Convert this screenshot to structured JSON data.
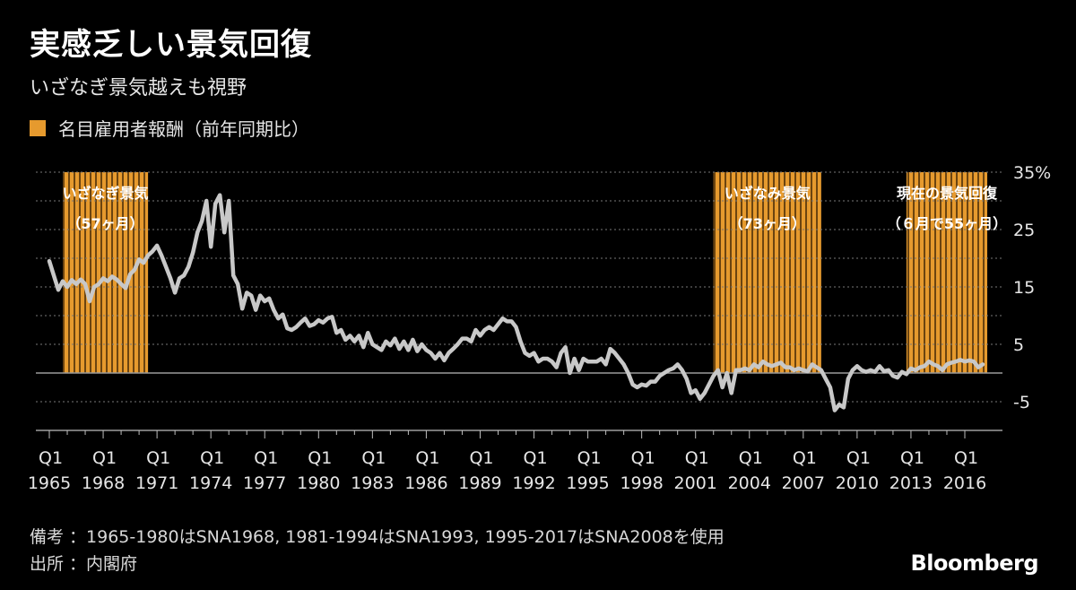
{
  "header": {
    "title": "実感乏しい景気回復",
    "subtitle": "いざなぎ景気越えも視野"
  },
  "legend": {
    "label": "名目雇用者報酬（前年同期比）",
    "color": "#e69a2e"
  },
  "footer": {
    "note": "備考 ：1965-1980はSNA1968, 1981-1994はSNA1993, 1995-2017はSNA2008を使用",
    "source": "出所 ：内閣府",
    "brand": "Bloomberg"
  },
  "colors": {
    "background": "#000000",
    "line": "#c8c8c8",
    "band": "#e69a2e",
    "grid": "#777777"
  },
  "chart_data": {
    "type": "line",
    "title": "",
    "xlabel": "",
    "ylabel": "",
    "x_range": [
      1965.0,
      2017.25
    ],
    "ylim": [
      -10,
      35
    ],
    "y_ticks": [
      35,
      25,
      15,
      5,
      -5
    ],
    "y_tick_labels": [
      "35%",
      "25",
      "15",
      "5",
      "-5"
    ],
    "x_ticks": [
      {
        "q": "Q1",
        "year": "1965",
        "x": 1965
      },
      {
        "q": "Q1",
        "year": "1968",
        "x": 1968
      },
      {
        "q": "Q1",
        "year": "1971",
        "x": 1971
      },
      {
        "q": "Q1",
        "year": "1974",
        "x": 1974
      },
      {
        "q": "Q1",
        "year": "1977",
        "x": 1977
      },
      {
        "q": "Q1",
        "year": "1980",
        "x": 1980
      },
      {
        "q": "Q1",
        "year": "1983",
        "x": 1983
      },
      {
        "q": "Q1",
        "year": "1986",
        "x": 1986
      },
      {
        "q": "Q1",
        "year": "1989",
        "x": 1989
      },
      {
        "q": "Q1",
        "year": "1992",
        "x": 1992
      },
      {
        "q": "Q1",
        "year": "1995",
        "x": 1995
      },
      {
        "q": "Q1",
        "year": "1998",
        "x": 1998
      },
      {
        "q": "Q1",
        "year": "2001",
        "x": 2001
      },
      {
        "q": "Q1",
        "year": "2004",
        "x": 2004
      },
      {
        "q": "Q1",
        "year": "2007",
        "x": 2007
      },
      {
        "q": "Q1",
        "year": "2010",
        "x": 2010
      },
      {
        "q": "Q1",
        "year": "2013",
        "x": 2013
      },
      {
        "q": "Q1",
        "year": "2016",
        "x": 2016
      }
    ],
    "periods": [
      {
        "line1": "いざなぎ景気",
        "line2": "（57ヶ月）",
        "start": 1965.75,
        "end": 1970.5
      },
      {
        "line1": "いざなみ景気",
        "line2": "（73ヶ月）",
        "start": 2002.0,
        "end": 2008.0
      },
      {
        "line1": "現在の景気回復",
        "line2": "（６月で55ヶ月）",
        "start": 2012.75,
        "end": 2017.25
      }
    ],
    "series": [
      {
        "points": [
          [
            1965.0,
            19.5
          ],
          [
            1965.25,
            17
          ],
          [
            1965.5,
            14.5
          ],
          [
            1965.75,
            16
          ],
          [
            1966.0,
            15
          ],
          [
            1966.25,
            16.2
          ],
          [
            1966.5,
            15.5
          ],
          [
            1966.75,
            16.3
          ],
          [
            1967.0,
            15.5
          ],
          [
            1967.25,
            12.5
          ],
          [
            1967.5,
            15
          ],
          [
            1967.75,
            15.5
          ],
          [
            1968.0,
            16.5
          ],
          [
            1968.25,
            16
          ],
          [
            1968.5,
            16.8
          ],
          [
            1968.75,
            16.3
          ],
          [
            1969.0,
            15.5
          ],
          [
            1969.25,
            14.8
          ],
          [
            1969.5,
            17.2
          ],
          [
            1969.75,
            18
          ],
          [
            1970.0,
            19.8
          ],
          [
            1970.25,
            19.2
          ],
          [
            1970.5,
            20.5
          ],
          [
            1970.75,
            21.2
          ],
          [
            1971.0,
            22.2
          ],
          [
            1971.25,
            20.5
          ],
          [
            1971.5,
            18.5
          ],
          [
            1971.75,
            16.5
          ],
          [
            1972.0,
            14
          ],
          [
            1972.25,
            16.5
          ],
          [
            1972.5,
            17
          ],
          [
            1972.75,
            18.5
          ],
          [
            1973.0,
            21
          ],
          [
            1973.25,
            24.5
          ],
          [
            1973.5,
            26.5
          ],
          [
            1973.75,
            30
          ],
          [
            1974.0,
            22
          ],
          [
            1974.25,
            29.5
          ],
          [
            1974.5,
            31
          ],
          [
            1974.75,
            24.5
          ],
          [
            1975.0,
            30
          ],
          [
            1975.25,
            17
          ],
          [
            1975.5,
            15.5
          ],
          [
            1975.75,
            11.2
          ],
          [
            1976.0,
            14
          ],
          [
            1976.25,
            13.5
          ],
          [
            1976.5,
            11
          ],
          [
            1976.75,
            13.5
          ],
          [
            1977.0,
            12.5
          ],
          [
            1977.25,
            13
          ],
          [
            1977.5,
            11
          ],
          [
            1977.75,
            9.5
          ],
          [
            1978.0,
            10.2
          ],
          [
            1978.25,
            7.8
          ],
          [
            1978.5,
            7.5
          ],
          [
            1978.75,
            8
          ],
          [
            1979.0,
            8.8
          ],
          [
            1979.25,
            9.5
          ],
          [
            1979.5,
            8.2
          ],
          [
            1979.75,
            8.5
          ],
          [
            1980.0,
            9.2
          ],
          [
            1980.25,
            8.8
          ],
          [
            1980.5,
            9.5
          ],
          [
            1980.75,
            9.8
          ],
          [
            1981.0,
            7
          ],
          [
            1981.25,
            7.5
          ],
          [
            1981.5,
            5.8
          ],
          [
            1981.75,
            6.5
          ],
          [
            1982.0,
            5.5
          ],
          [
            1982.25,
            6.5
          ],
          [
            1982.5,
            4.5
          ],
          [
            1982.75,
            7
          ],
          [
            1983.0,
            5
          ],
          [
            1983.25,
            4.5
          ],
          [
            1983.5,
            4
          ],
          [
            1983.75,
            5.5
          ],
          [
            1984.0,
            4.8
          ],
          [
            1984.25,
            6
          ],
          [
            1984.5,
            4.2
          ],
          [
            1984.75,
            5.5
          ],
          [
            1985.0,
            4
          ],
          [
            1985.25,
            5.8
          ],
          [
            1985.5,
            3.8
          ],
          [
            1985.75,
            5
          ],
          [
            1986.0,
            4
          ],
          [
            1986.25,
            3.5
          ],
          [
            1986.5,
            2.5
          ],
          [
            1986.75,
            3.5
          ],
          [
            1987.0,
            2.2
          ],
          [
            1987.25,
            3.5
          ],
          [
            1987.5,
            4.2
          ],
          [
            1987.75,
            5
          ],
          [
            1988.0,
            6
          ],
          [
            1988.25,
            6
          ],
          [
            1988.5,
            5.5
          ],
          [
            1988.75,
            7.5
          ],
          [
            1989.0,
            6.5
          ],
          [
            1989.25,
            7.5
          ],
          [
            1989.5,
            8
          ],
          [
            1989.75,
            7.5
          ],
          [
            1990.0,
            8.5
          ],
          [
            1990.25,
            9.5
          ],
          [
            1990.5,
            9
          ],
          [
            1990.75,
            9
          ],
          [
            1991.0,
            8
          ],
          [
            1991.25,
            5.5
          ],
          [
            1991.5,
            3.5
          ],
          [
            1991.75,
            3
          ],
          [
            1992.0,
            3.5
          ],
          [
            1992.25,
            2
          ],
          [
            1992.5,
            2.5
          ],
          [
            1992.75,
            2.5
          ],
          [
            1993.0,
            2
          ],
          [
            1993.25,
            1
          ],
          [
            1993.5,
            3.5
          ],
          [
            1993.75,
            4.5
          ],
          [
            1994.0,
            0
          ],
          [
            1994.25,
            2.5
          ],
          [
            1994.5,
            0.5
          ],
          [
            1994.75,
            2.5
          ],
          [
            1995.0,
            2
          ],
          [
            1995.25,
            2
          ],
          [
            1995.5,
            2
          ],
          [
            1995.75,
            2.5
          ],
          [
            1996.0,
            1.5
          ],
          [
            1996.25,
            4.2
          ],
          [
            1996.5,
            3.5
          ],
          [
            1996.75,
            2.5
          ],
          [
            1997.0,
            1.5
          ],
          [
            1997.25,
            0
          ],
          [
            1997.5,
            -2
          ],
          [
            1997.75,
            -2.5
          ],
          [
            1998.0,
            -2
          ],
          [
            1998.25,
            -2.2
          ],
          [
            1998.5,
            -1.5
          ],
          [
            1998.75,
            -1.5
          ],
          [
            1999.0,
            -0.5
          ],
          [
            1999.25,
            0
          ],
          [
            1999.5,
            0.5
          ],
          [
            1999.75,
            0.8
          ],
          [
            2000.0,
            1.5
          ],
          [
            2000.25,
            0.5
          ],
          [
            2000.5,
            -1
          ],
          [
            2000.75,
            -3.5
          ],
          [
            2001.0,
            -3
          ],
          [
            2001.25,
            -4.5
          ],
          [
            2001.5,
            -3.5
          ],
          [
            2001.75,
            -2
          ],
          [
            2002.0,
            -0.5
          ],
          [
            2002.25,
            0.5
          ],
          [
            2002.5,
            -2.5
          ],
          [
            2002.75,
            0
          ],
          [
            2003.0,
            -3.5
          ],
          [
            2003.25,
            0.5
          ],
          [
            2003.5,
            0.5
          ],
          [
            2003.75,
            0.8
          ],
          [
            2004.0,
            0.5
          ],
          [
            2004.25,
            1.5
          ],
          [
            2004.5,
            1
          ],
          [
            2004.75,
            2
          ],
          [
            2005.0,
            1.5
          ],
          [
            2005.25,
            1.2
          ],
          [
            2005.5,
            1.5
          ],
          [
            2005.75,
            1.8
          ],
          [
            2006.0,
            1
          ],
          [
            2006.25,
            1
          ],
          [
            2006.5,
            0.5
          ],
          [
            2006.75,
            0.8
          ],
          [
            2007.0,
            0.5
          ],
          [
            2007.25,
            0.3
          ],
          [
            2007.5,
            1.5
          ],
          [
            2007.75,
            1
          ],
          [
            2008.0,
            0.5
          ],
          [
            2008.25,
            -1
          ],
          [
            2008.5,
            -2.5
          ],
          [
            2008.75,
            -6.5
          ],
          [
            2009.0,
            -5.5
          ],
          [
            2009.25,
            -6
          ],
          [
            2009.5,
            -1
          ],
          [
            2009.75,
            0.5
          ],
          [
            2010.0,
            1.2
          ],
          [
            2010.25,
            0.5
          ],
          [
            2010.5,
            0.2
          ],
          [
            2010.75,
            0.5
          ],
          [
            2011.0,
            0.2
          ],
          [
            2011.25,
            1.2
          ],
          [
            2011.5,
            0.3
          ],
          [
            2011.75,
            0.5
          ],
          [
            2012.0,
            -0.5
          ],
          [
            2012.25,
            -0.8
          ],
          [
            2012.5,
            0.2
          ],
          [
            2012.75,
            -0.2
          ],
          [
            2013.0,
            0.8
          ],
          [
            2013.25,
            0.5
          ],
          [
            2013.5,
            1
          ],
          [
            2013.75,
            1.2
          ],
          [
            2014.0,
            2
          ],
          [
            2014.25,
            1.5
          ],
          [
            2014.5,
            1.2
          ],
          [
            2014.75,
            0.5
          ],
          [
            2015.0,
            1.5
          ],
          [
            2015.25,
            1.8
          ],
          [
            2015.5,
            2
          ],
          [
            2015.75,
            2.3
          ],
          [
            2016.0,
            2
          ],
          [
            2016.25,
            2.2
          ],
          [
            2016.5,
            2
          ],
          [
            2016.75,
            1
          ],
          [
            2017.0,
            1.5
          ]
        ]
      }
    ]
  }
}
